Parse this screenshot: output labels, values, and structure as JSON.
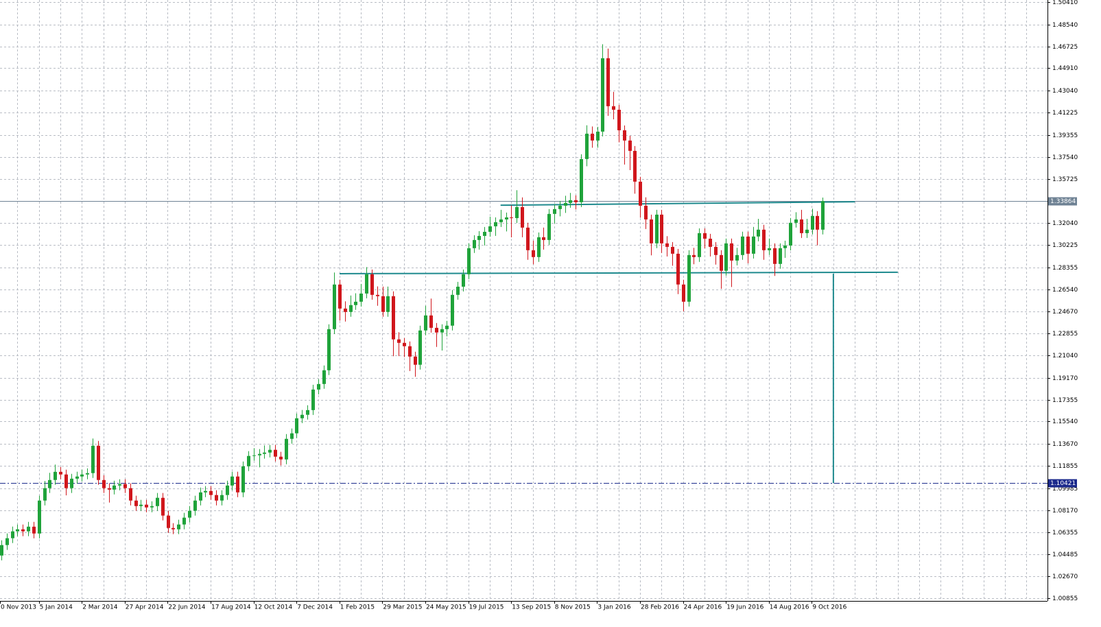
{
  "chart_data": {
    "type": "candlestick",
    "categories": [
      "0 Nov 2013",
      null,
      null,
      null,
      null,
      null,
      null,
      null,
      "5 Jan 2014",
      null,
      null,
      null,
      null,
      null,
      null,
      null,
      "2 Mar 2014",
      null,
      null,
      null,
      null,
      null,
      null,
      null,
      "27 Apr 2014",
      null,
      null,
      null,
      null,
      null,
      null,
      null,
      "22 Jun 2014",
      null,
      null,
      null,
      null,
      null,
      null,
      null,
      "17 Aug 2014",
      null,
      null,
      null,
      null,
      null,
      null,
      null,
      "12 Oct 2014",
      null,
      null,
      null,
      null,
      null,
      null,
      null,
      "7 Dec 2014",
      null,
      null,
      null,
      null,
      null,
      null,
      null,
      "1 Feb 2015",
      null,
      null,
      null,
      null,
      null,
      null,
      null,
      "29 Mar 2015",
      null,
      null,
      null,
      null,
      null,
      null,
      null,
      "24 May 2015",
      null,
      null,
      null,
      null,
      null,
      null,
      null,
      "19 Jul 2015",
      null,
      null,
      null,
      null,
      null,
      null,
      null,
      "13 Sep 2015",
      null,
      null,
      null,
      null,
      null,
      null,
      null,
      "8 Nov 2015",
      null,
      null,
      null,
      null,
      null,
      null,
      null,
      "3 Jan 2016",
      null,
      null,
      null,
      null,
      null,
      null,
      null,
      "28 Feb 2016",
      null,
      null,
      null,
      null,
      null,
      null,
      null,
      "24 Apr 2016",
      null,
      null,
      null,
      null,
      null,
      null,
      null,
      "19 Jun 2016",
      null,
      null,
      null,
      null,
      null,
      null,
      null,
      "14 Aug 2016",
      null,
      null,
      null,
      null,
      null,
      null,
      null,
      "9 Oct 2016",
      null
    ],
    "open": [
      1.044,
      1.0527,
      1.0584,
      1.0641,
      1.0658,
      1.0641,
      1.068,
      1.0623,
      1.0897,
      1.1,
      1.1068,
      1.1136,
      1.1114,
      1.1,
      1.1079,
      1.1097,
      1.1114,
      1.1125,
      1.1353,
      1.1068,
      1.1,
      1.0988,
      1.1022,
      1.1034,
      1.1,
      1.0897,
      1.0851,
      1.0863,
      1.084,
      1.0851,
      1.092,
      1.0772,
      1.0669,
      1.0658,
      1.0698,
      1.0755,
      1.0812,
      1.0897,
      1.0965,
      1.0977,
      1.0943,
      1.0897,
      1.0943,
      1.1022,
      1.1097,
      1.0965,
      1.1182,
      1.1268,
      1.1273,
      1.1285,
      1.1296,
      1.1319,
      1.1262,
      1.1239,
      1.141,
      1.1456,
      1.1581,
      1.161,
      1.1649,
      1.182,
      1.1866,
      1.198,
      1.2322,
      1.2693,
      1.2493,
      1.2465,
      1.2522,
      1.255,
      1.2618,
      1.2778,
      1.2607,
      1.2596,
      1.2465,
      1.2596,
      1.2237,
      1.2208,
      1.218,
      1.2094,
      1.2026,
      1.2311,
      1.2436,
      1.2333,
      1.2294,
      1.2322,
      1.2351,
      1.2607,
      1.2675,
      1.2778,
      1.2995,
      1.3063,
      1.3097,
      1.3131,
      1.3177,
      1.3211,
      1.3234,
      1.3251,
      1.3245,
      1.3337,
      1.3166,
      1.2978,
      1.2921,
      1.3086,
      1.3063,
      1.328,
      1.332,
      1.3348,
      1.3371,
      1.3394,
      1.3377,
      1.3736,
      1.3947,
      1.389,
      1.3964,
      1.4574,
      1.4175,
      1.4146,
      1.3975,
      1.389,
      1.3804,
      1.3548,
      1.3348,
      1.3234,
      1.3035,
      1.3274,
      1.3035,
      1.3006,
      1.2949,
      1.2693,
      1.255,
      1.2938,
      1.2921,
      1.312,
      1.3074,
      1.3006,
      1.2938,
      1.2807,
      1.3035,
      1.2892,
      1.2938,
      1.3092,
      1.2949,
      1.3092,
      1.3149,
      1.2978,
      1.2995,
      1.2864,
      1.2995,
      1.3017,
      1.3206,
      1.3234,
      1.312,
      1.3149,
      1.3263,
      1.3149
    ],
    "high": [
      1.0567,
      1.0624,
      1.0681,
      1.0698,
      1.0698,
      1.072,
      1.072,
      1.0937,
      1.106,
      1.1128,
      1.1196,
      1.1176,
      1.1154,
      1.1119,
      1.1137,
      1.1154,
      1.1165,
      1.1413,
      1.1393,
      1.1108,
      1.104,
      1.1062,
      1.1074,
      1.1074,
      1.104,
      1.0937,
      1.0903,
      1.0903,
      1.0891,
      1.096,
      1.096,
      1.0812,
      1.0709,
      1.0738,
      1.0795,
      1.0852,
      1.0937,
      1.1005,
      1.1017,
      1.1017,
      1.0983,
      1.0983,
      1.1062,
      1.1137,
      1.1137,
      1.1222,
      1.1308,
      1.1333,
      1.1325,
      1.1356,
      1.1359,
      1.1359,
      1.1302,
      1.145,
      1.1496,
      1.1621,
      1.165,
      1.1689,
      1.186,
      1.1906,
      1.202,
      1.2362,
      1.2793,
      1.2733,
      1.2553,
      1.2602,
      1.262,
      1.2698,
      1.2838,
      1.2818,
      1.2677,
      1.2676,
      1.2676,
      1.2636,
      1.2297,
      1.2248,
      1.222,
      1.2134,
      1.2351,
      1.2516,
      1.2576,
      1.2373,
      1.2362,
      1.2391,
      1.2647,
      1.2715,
      1.2818,
      1.3035,
      1.3103,
      1.3137,
      1.3171,
      1.3257,
      1.3251,
      1.3314,
      1.3291,
      1.3351,
      1.3477,
      1.3417,
      1.3206,
      1.3058,
      1.3126,
      1.3166,
      1.332,
      1.336,
      1.3388,
      1.3431,
      1.3454,
      1.3434,
      1.3776,
      1.4017,
      1.4007,
      1.4004,
      1.469,
      1.4654,
      1.4295,
      1.4186,
      1.4015,
      1.393,
      1.3844,
      1.3588,
      1.3418,
      1.3274,
      1.3314,
      1.3314,
      1.3095,
      1.3046,
      1.2989,
      1.2733,
      1.2978,
      1.2998,
      1.316,
      1.316,
      1.3114,
      1.3046,
      1.2978,
      1.3075,
      1.3075,
      1.2998,
      1.3132,
      1.3132,
      1.3172,
      1.3239,
      1.3189,
      1.3075,
      1.3035,
      1.3035,
      1.3057,
      1.3246,
      1.3294,
      1.3314,
      1.3239,
      1.3323,
      1.3303,
      1.3416
    ],
    "low": [
      1.04,
      1.0487,
      1.0544,
      1.0601,
      1.0601,
      1.0601,
      1.0583,
      1.0583,
      1.0857,
      1.096,
      1.1028,
      1.1074,
      1.094,
      1.096,
      1.1039,
      1.1057,
      1.1074,
      1.1085,
      1.1028,
      1.096,
      1.088,
      1.0948,
      1.0982,
      1.096,
      1.0857,
      1.0811,
      1.0811,
      1.08,
      1.08,
      1.0811,
      1.0732,
      1.0629,
      1.0618,
      1.0618,
      1.0658,
      1.0715,
      1.0772,
      1.0857,
      1.0925,
      1.0903,
      1.0857,
      1.0857,
      1.0903,
      1.0982,
      1.0925,
      1.0925,
      1.1142,
      1.1228,
      1.1173,
      1.1245,
      1.1256,
      1.1222,
      1.1189,
      1.1199,
      1.137,
      1.1416,
      1.1541,
      1.157,
      1.1609,
      1.178,
      1.1826,
      1.194,
      1.2282,
      1.2393,
      1.2385,
      1.2425,
      1.2482,
      1.251,
      1.2578,
      1.2567,
      1.2516,
      1.2425,
      1.2425,
      1.2097,
      1.2098,
      1.209,
      1.1974,
      1.1926,
      1.1986,
      1.2271,
      1.2293,
      1.2174,
      1.2144,
      1.2262,
      1.2311,
      1.2567,
      1.2635,
      1.2738,
      1.2955,
      1.2983,
      1.3017,
      1.3091,
      1.3097,
      1.3171,
      1.3134,
      1.3085,
      1.3205,
      1.3086,
      1.2898,
      1.2861,
      1.2881,
      1.2983,
      1.3023,
      1.32,
      1.326,
      1.3288,
      1.3331,
      1.3317,
      1.3337,
      1.3676,
      1.383,
      1.383,
      1.3924,
      1.4095,
      1.4066,
      1.3875,
      1.369,
      1.3644,
      1.3448,
      1.3248,
      1.3154,
      1.2935,
      1.2995,
      1.2955,
      1.2926,
      1.2849,
      1.2613,
      1.247,
      1.251,
      1.2861,
      1.2881,
      1.2994,
      1.2926,
      1.2858,
      1.2657,
      1.2767,
      1.2672,
      1.2852,
      1.2898,
      1.2869,
      1.2909,
      1.3052,
      1.2898,
      1.2938,
      1.2764,
      1.2824,
      1.2915,
      1.2977,
      1.3166,
      1.308,
      1.308,
      1.3109,
      1.3019,
      1.3109
    ],
    "close": [
      1.0527,
      1.0584,
      1.0641,
      1.0658,
      1.0641,
      1.068,
      1.0623,
      1.0897,
      1.1,
      1.1068,
      1.1136,
      1.1114,
      1.1,
      1.1079,
      1.1097,
      1.1114,
      1.1125,
      1.1353,
      1.1068,
      1.1,
      1.0988,
      1.1022,
      1.1034,
      1.1,
      1.0897,
      1.0851,
      1.0863,
      1.084,
      1.0851,
      1.092,
      1.0772,
      1.0669,
      1.0658,
      1.0698,
      1.0755,
      1.0812,
      1.0897,
      1.0965,
      1.0977,
      1.0943,
      1.0897,
      1.0943,
      1.1022,
      1.1097,
      1.0965,
      1.1182,
      1.1268,
      1.1273,
      1.1285,
      1.1296,
      1.1319,
      1.1262,
      1.1239,
      1.141,
      1.1456,
      1.1581,
      1.161,
      1.1649,
      1.182,
      1.1866,
      1.198,
      1.2322,
      1.2693,
      1.2493,
      1.2465,
      1.2522,
      1.255,
      1.2618,
      1.2778,
      1.2607,
      1.2596,
      1.2465,
      1.2596,
      1.2237,
      1.2208,
      1.218,
      1.2094,
      1.2026,
      1.2311,
      1.2436,
      1.2333,
      1.2294,
      1.2322,
      1.2351,
      1.2607,
      1.2675,
      1.2778,
      1.2995,
      1.3063,
      1.3097,
      1.3131,
      1.3177,
      1.3211,
      1.3234,
      1.3251,
      1.3245,
      1.3337,
      1.3166,
      1.2978,
      1.2921,
      1.3086,
      1.3063,
      1.328,
      1.332,
      1.3348,
      1.3371,
      1.3394,
      1.3377,
      1.3736,
      1.3947,
      1.389,
      1.3964,
      1.4574,
      1.4175,
      1.4146,
      1.3975,
      1.389,
      1.3804,
      1.3548,
      1.3348,
      1.3234,
      1.3035,
      1.3274,
      1.3035,
      1.3006,
      1.2949,
      1.2693,
      1.255,
      1.2938,
      1.2921,
      1.312,
      1.3074,
      1.3006,
      1.2938,
      1.2807,
      1.3035,
      1.2892,
      1.2938,
      1.3092,
      1.2949,
      1.3092,
      1.3149,
      1.2978,
      1.2995,
      1.2864,
      1.2995,
      1.3017,
      1.3206,
      1.3234,
      1.312,
      1.3149,
      1.3263,
      1.3149,
      1.3386
    ],
    "up_color": "#1fa33a",
    "down_color": "#d0161c",
    "ylim": [
      1.00627,
      1.50581
    ],
    "yticks": [
      {
        "value": 1.5041,
        "label": "1.50410"
      },
      {
        "value": 1.4854,
        "label": "1.48540"
      },
      1.46725,
      {
        "value": 1.4491,
        "label": "1.44910"
      },
      {
        "value": 1.4304,
        "label": "1.43040"
      },
      1.41225,
      1.39355,
      {
        "value": 1.3754,
        "label": "1.37540"
      },
      1.35725,
      {
        "value": 1.3204,
        "label": "1.32040"
      },
      1.30225,
      1.28355,
      {
        "value": 1.2654,
        "label": "1.26540"
      },
      {
        "value": 1.2467,
        "label": "1.24670"
      },
      1.22855,
      {
        "value": 1.2104,
        "label": "1.21040"
      },
      {
        "value": 1.1917,
        "label": "1.19170"
      },
      1.17355,
      {
        "value": 1.1554,
        "label": "1.15540"
      },
      {
        "value": 1.1367,
        "label": "1.13670"
      },
      1.11855,
      1.09985,
      {
        "value": 1.0817,
        "label": "1.08170"
      },
      1.06355,
      1.04485,
      {
        "value": 1.0267,
        "label": "1.02670"
      },
      1.00855
    ],
    "grid": true,
    "bid_line": 1.33864,
    "level_line": 1.10421,
    "trendlines": [
      {
        "from": [
          63,
          1.2783
        ],
        "to": [
          167,
          1.2795
        ]
      },
      {
        "from": [
          93,
          1.3352
        ],
        "to": [
          159,
          1.3381
        ]
      },
      {
        "from": [
          155,
          1.2783
        ],
        "to": [
          155,
          1.1042
        ]
      }
    ]
  }
}
